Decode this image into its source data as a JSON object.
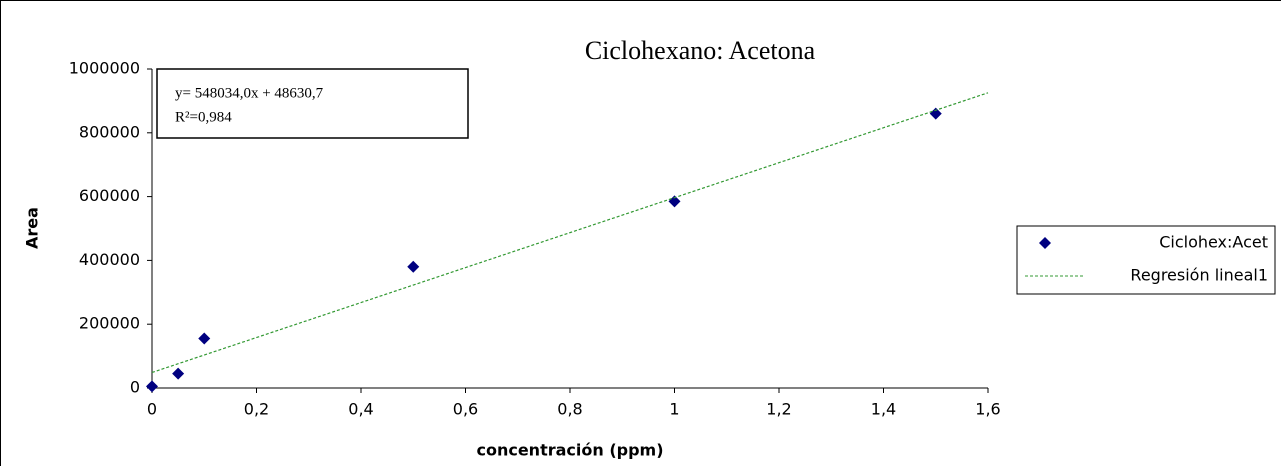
{
  "chart_data": {
    "type": "scatter",
    "title": "Ciclohexano: Acetona",
    "xlabel": "concentración (ppm)",
    "ylabel": "Area",
    "annotations": [
      "y= 548034,0x + 48630,7",
      "R²=0,984"
    ],
    "series": [
      {
        "name": "Ciclohex:Acet",
        "color": "#000080",
        "marker": "diamond",
        "x": [
          0,
          0.05,
          0.1,
          0.5,
          1,
          1.5
        ],
        "values": [
          5000,
          45000,
          155000,
          380000,
          585000,
          860000
        ]
      },
      {
        "name": "Regresión lineal1",
        "color": "#339933",
        "marker": "dashed-line",
        "x": [
          0,
          1.6
        ],
        "values": [
          48630.7,
          925485.1
        ]
      }
    ],
    "xlim": [
      0,
      1.6
    ],
    "ylim": [
      0,
      1000000
    ],
    "xticks": [
      0,
      {
        "value": 0.2,
        "label": "0,2"
      },
      {
        "value": 0.4,
        "label": "0,4"
      },
      {
        "value": 0.6,
        "label": "0,6"
      },
      {
        "value": 0.8,
        "label": "0,8"
      },
      1,
      {
        "value": 1.2,
        "label": "1,2"
      },
      {
        "value": 1.4,
        "label": "1,4"
      },
      {
        "value": 1.6,
        "label": "1,6"
      }
    ],
    "yticks": [
      0,
      200000,
      400000,
      600000,
      800000,
      1000000
    ],
    "legend": "right",
    "grid": false
  }
}
